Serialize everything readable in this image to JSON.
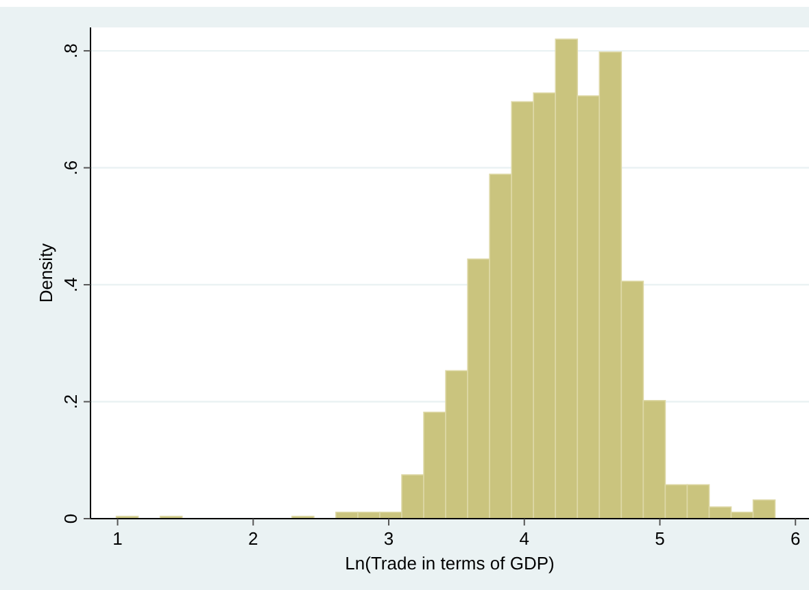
{
  "chart_data": {
    "type": "histogram",
    "xlabel": "Ln(Trade in terms of GDP)",
    "ylabel": "Density",
    "bins": [
      0.99,
      1.152,
      1.314,
      1.476,
      1.638,
      1.8,
      1.962,
      2.124,
      2.286,
      2.448,
      2.61,
      2.772,
      2.934,
      3.096,
      3.258,
      3.42,
      3.582,
      3.744,
      3.906,
      4.068,
      4.23,
      4.392,
      4.554,
      4.716,
      4.878,
      5.04,
      5.202,
      5.364,
      5.526,
      5.688,
      5.85
    ],
    "values": [
      0.004,
      0,
      0.004,
      0,
      0,
      0,
      0,
      0,
      0.004,
      0,
      0.011,
      0.011,
      0.011,
      0.075,
      0.182,
      0.253,
      0.444,
      0.589,
      0.713,
      0.728,
      0.82,
      0.723,
      0.798,
      0.406,
      0.202,
      0.058,
      0.058,
      0.02,
      0.011,
      0.032
    ],
    "color": "#cac47e",
    "xlim": [
      0.8,
      6.1
    ],
    "xticks": [
      1,
      2,
      3,
      4,
      5,
      6
    ],
    "ylim": [
      0,
      0.84
    ],
    "yticks": [
      {
        "value": 0,
        "label": "0"
      },
      {
        "value": 0.2,
        "label": ".2"
      },
      {
        "value": 0.4,
        "label": ".4"
      },
      {
        "value": 0.6,
        "label": ".6"
      },
      {
        "value": 0.8,
        "label": ".8"
      }
    ],
    "grid": "y"
  }
}
